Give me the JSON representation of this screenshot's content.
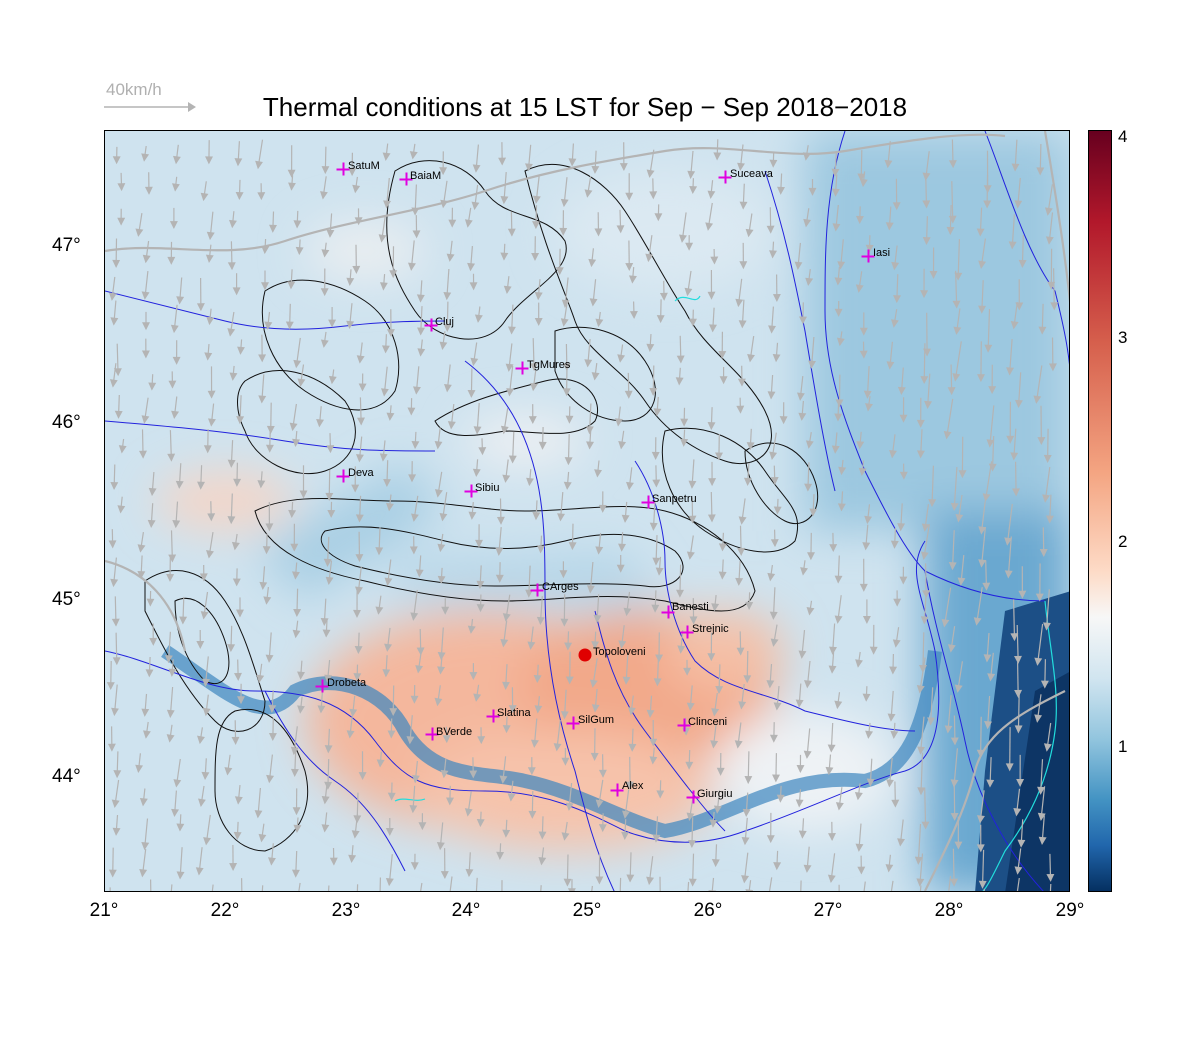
{
  "title": "Thermal conditions at 15 LST for Sep − Sep  2018−2018",
  "scale": {
    "label": "40km/h"
  },
  "axes": {
    "x_ticks": [
      "21°",
      "22°",
      "23°",
      "24°",
      "25°",
      "26°",
      "27°",
      "28°",
      "29°"
    ],
    "y_ticks": [
      "47°",
      "46°",
      "45°",
      "44°"
    ]
  },
  "colorbar": {
    "ticks": [
      "4",
      "3",
      "2",
      "1"
    ]
  },
  "colors": {
    "warm": "#f4a582",
    "cool": "#92c5de",
    "marker": "#e000e0",
    "highlight": "#e00000",
    "rivers": "#2222dd",
    "contours": "#000000",
    "arrows": "#b4b4b4"
  },
  "cities": [
    {
      "name": "SatuM"
    },
    {
      "name": "BaiaM"
    },
    {
      "name": "Suceava"
    },
    {
      "name": "Iasi"
    },
    {
      "name": "Cluj"
    },
    {
      "name": "TgMures"
    },
    {
      "name": "Deva"
    },
    {
      "name": "Sibiu"
    },
    {
      "name": "Sanpetru"
    },
    {
      "name": "CArges"
    },
    {
      "name": "Banesti"
    },
    {
      "name": "Strejnic"
    },
    {
      "name": "Topoloveni"
    },
    {
      "name": "Drobeta"
    },
    {
      "name": "Slatina"
    },
    {
      "name": "SilGum"
    },
    {
      "name": "Clinceni"
    },
    {
      "name": "BVerde"
    },
    {
      "name": "Alex"
    },
    {
      "name": "Giurgiu"
    }
  ]
}
